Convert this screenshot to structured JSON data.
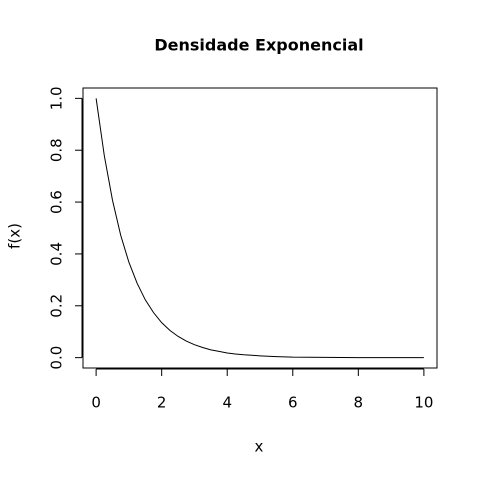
{
  "chart_data": {
    "type": "line",
    "title": "Densidade Exponencial",
    "x_label": "x",
    "y_label": "f(x)",
    "x": [
      0,
      0.25,
      0.5,
      0.75,
      1,
      1.25,
      1.5,
      1.75,
      2,
      2.25,
      2.5,
      2.75,
      3,
      3.25,
      3.5,
      3.75,
      4,
      4.25,
      4.5,
      4.75,
      5,
      5.5,
      6,
      7,
      8,
      9,
      10
    ],
    "series": [
      {
        "color": "#000000",
        "values": [
          1,
          0.779,
          0.607,
          0.472,
          0.368,
          0.287,
          0.223,
          0.174,
          0.135,
          0.105,
          0.082,
          0.064,
          0.05,
          0.039,
          0.03,
          0.024,
          0.018,
          0.014,
          0.011,
          0.009,
          0.007,
          0.004,
          0.002,
          0.001,
          0,
          0,
          0
        ]
      }
    ],
    "xlim": [
      -0.4,
      10.4
    ],
    "ylim": [
      -0.04,
      1.04
    ],
    "xticks": [
      0,
      2,
      4,
      6,
      8,
      10
    ],
    "yticks": [
      {
        "value": 0,
        "label": "0.0"
      },
      0.2,
      0.4,
      0.6,
      0.8,
      {
        "value": 1,
        "label": "1.0"
      }
    ]
  }
}
